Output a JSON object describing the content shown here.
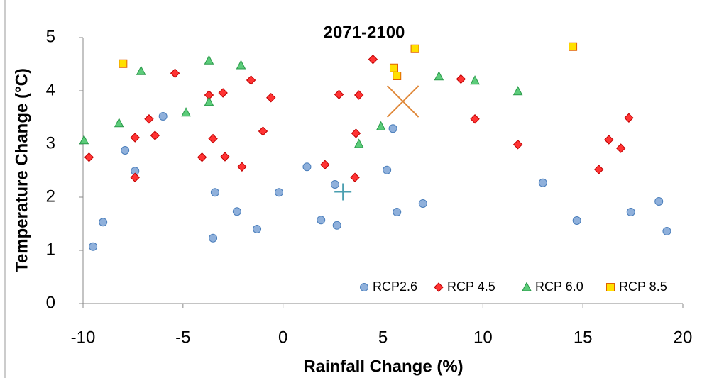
{
  "chart_data": {
    "type": "scatter",
    "title": "2071-2100",
    "x_label": "Rainfall Change (%)",
    "y_label": "Temperature Change (°C)",
    "xlim": [
      -10,
      20
    ],
    "xticks": [
      -10,
      -5,
      0,
      5,
      10,
      15,
      20
    ],
    "ylim": [
      0,
      5
    ],
    "yticks": [
      0,
      1,
      2,
      3,
      4,
      5
    ],
    "grid": false,
    "legend": "bottom-right",
    "series": [
      {
        "name": "RCP2.6",
        "color": "#8fb0db",
        "marker": "circle",
        "x": [
          -9.5,
          -9.0,
          -7.9,
          -7.4,
          -6.0,
          -3.4,
          -3.5,
          -2.3,
          -1.3,
          -0.2,
          1.2,
          1.9,
          2.6,
          2.7,
          5.2,
          5.5,
          5.7,
          7.0,
          13.0,
          14.7,
          17.4,
          18.8,
          19.2
        ],
        "values": [
          1.07,
          1.53,
          2.88,
          2.49,
          3.52,
          2.09,
          1.23,
          1.73,
          1.4,
          2.09,
          2.57,
          1.57,
          2.24,
          1.47,
          2.51,
          3.29,
          1.72,
          1.88,
          2.27,
          1.56,
          1.72,
          1.92,
          1.36
        ]
      },
      {
        "name": "RCP 4.5",
        "color": "#ff3333",
        "marker": "diamond",
        "x": [
          -9.7,
          -7.4,
          -7.4,
          -6.7,
          -6.4,
          -5.4,
          -4.05,
          -3.7,
          -3.5,
          -3.0,
          -2.9,
          -2.05,
          -1.6,
          -1.0,
          -0.6,
          2.1,
          2.8,
          3.8,
          3.65,
          3.6,
          4.5,
          8.9,
          9.6,
          11.75,
          15.8,
          16.3,
          16.9,
          17.3
        ],
        "values": [
          2.75,
          3.12,
          2.37,
          3.47,
          3.16,
          4.33,
          2.75,
          3.92,
          3.1,
          3.96,
          2.76,
          2.57,
          4.2,
          3.24,
          3.87,
          2.61,
          3.93,
          3.92,
          3.2,
          2.37,
          4.59,
          4.22,
          3.47,
          2.99,
          2.52,
          3.08,
          2.92,
          3.49
        ]
      },
      {
        "name": "RCP 6.0",
        "color": "#5ccc7a",
        "marker": "triangle",
        "x": [
          -9.95,
          -8.2,
          -7.1,
          -4.85,
          -3.7,
          -3.7,
          -2.1,
          3.8,
          4.9,
          7.8,
          9.6,
          11.75
        ],
        "values": [
          3.07,
          3.39,
          4.37,
          3.59,
          4.57,
          3.79,
          4.48,
          3.0,
          3.33,
          4.27,
          4.19,
          3.99
        ]
      },
      {
        "name": "RCP 8.5",
        "color": "#ffe000",
        "marker": "square",
        "x": [
          -8.0,
          5.55,
          5.7,
          6.6,
          14.5
        ],
        "values": [
          4.51,
          4.43,
          4.28,
          4.79,
          4.83
        ]
      }
    ],
    "mean_markers": [
      {
        "x": 3.0,
        "y": 2.1,
        "marker": "plus",
        "color": "#4a9fb0"
      },
      {
        "x": 6.0,
        "y": 3.8,
        "marker": "cross",
        "color": "#e08a3c"
      }
    ]
  }
}
